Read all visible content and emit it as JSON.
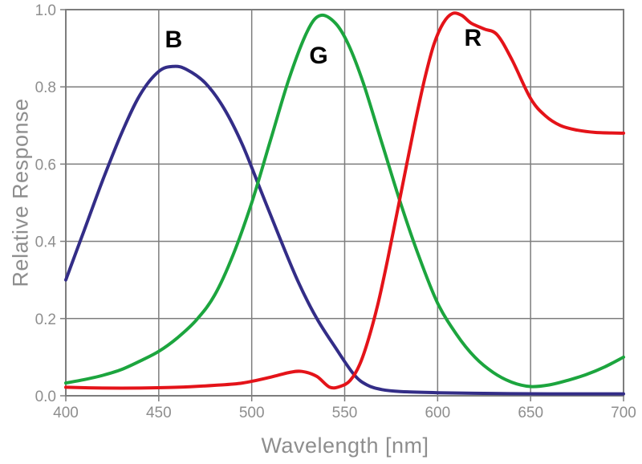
{
  "figure": {
    "background": "#ffffff",
    "kind": "spectral response line chart"
  },
  "style": {
    "grid_color": "#7d7d7d",
    "axis_color": "#7d7d7d",
    "tick_label_color": "#8e8e8e",
    "axis_title_color": "#8e8e8e",
    "series_label_color": "#000000",
    "curve_width": 4
  },
  "chart_data": {
    "type": "line",
    "title": "",
    "xlabel": "Wavelength [nm]",
    "ylabel": "Relative Response",
    "xlim": [
      400,
      700
    ],
    "ylim": [
      0.0,
      1.0
    ],
    "grid": true,
    "legend_position": "inline-labels",
    "x_ticks": [
      400,
      450,
      500,
      550,
      600,
      650,
      700
    ],
    "x_tick_labels": [
      "400",
      "450",
      "500",
      "550",
      "600",
      "650",
      "700"
    ],
    "y_ticks": [
      0.0,
      0.2,
      0.4,
      0.6,
      0.8,
      1.0
    ],
    "y_tick_labels": [
      "0.0",
      "0.2",
      "0.4",
      "0.6",
      "0.8",
      "1.0"
    ],
    "series": [
      {
        "name": "B",
        "color": "#332d87",
        "label_at": [
          458,
          0.92
        ],
        "points": [
          [
            400,
            0.3
          ],
          [
            410,
            0.43
          ],
          [
            420,
            0.56
          ],
          [
            430,
            0.68
          ],
          [
            440,
            0.78
          ],
          [
            450,
            0.84
          ],
          [
            458,
            0.853
          ],
          [
            465,
            0.845
          ],
          [
            475,
            0.81
          ],
          [
            485,
            0.745
          ],
          [
            495,
            0.65
          ],
          [
            505,
            0.53
          ],
          [
            515,
            0.41
          ],
          [
            525,
            0.295
          ],
          [
            535,
            0.2
          ],
          [
            545,
            0.125
          ],
          [
            555,
            0.055
          ],
          [
            562,
            0.028
          ],
          [
            570,
            0.016
          ],
          [
            580,
            0.011
          ],
          [
            600,
            0.008
          ],
          [
            630,
            0.006
          ],
          [
            660,
            0.005
          ],
          [
            700,
            0.005
          ]
        ]
      },
      {
        "name": "G",
        "color": "#1ca53e",
        "label_at": [
          536,
          0.88
        ],
        "points": [
          [
            400,
            0.033
          ],
          [
            410,
            0.042
          ],
          [
            420,
            0.053
          ],
          [
            430,
            0.068
          ],
          [
            440,
            0.09
          ],
          [
            450,
            0.115
          ],
          [
            460,
            0.15
          ],
          [
            470,
            0.195
          ],
          [
            480,
            0.26
          ],
          [
            490,
            0.365
          ],
          [
            500,
            0.5
          ],
          [
            510,
            0.66
          ],
          [
            520,
            0.82
          ],
          [
            530,
            0.945
          ],
          [
            537,
            0.985
          ],
          [
            545,
            0.965
          ],
          [
            552,
            0.91
          ],
          [
            560,
            0.81
          ],
          [
            570,
            0.655
          ],
          [
            580,
            0.5
          ],
          [
            590,
            0.36
          ],
          [
            600,
            0.24
          ],
          [
            610,
            0.16
          ],
          [
            620,
            0.1
          ],
          [
            630,
            0.06
          ],
          [
            640,
            0.035
          ],
          [
            650,
            0.024
          ],
          [
            660,
            0.028
          ],
          [
            670,
            0.04
          ],
          [
            680,
            0.055
          ],
          [
            690,
            0.075
          ],
          [
            700,
            0.1
          ]
        ]
      },
      {
        "name": "R",
        "color": "#e41319",
        "label_at": [
          619,
          0.925
        ],
        "points": [
          [
            400,
            0.022
          ],
          [
            420,
            0.02
          ],
          [
            440,
            0.02
          ],
          [
            460,
            0.022
          ],
          [
            480,
            0.027
          ],
          [
            495,
            0.033
          ],
          [
            510,
            0.048
          ],
          [
            520,
            0.06
          ],
          [
            527,
            0.063
          ],
          [
            535,
            0.05
          ],
          [
            542,
            0.022
          ],
          [
            548,
            0.025
          ],
          [
            553,
            0.04
          ],
          [
            558,
            0.08
          ],
          [
            563,
            0.15
          ],
          [
            568,
            0.24
          ],
          [
            573,
            0.35
          ],
          [
            578,
            0.47
          ],
          [
            583,
            0.59
          ],
          [
            588,
            0.71
          ],
          [
            593,
            0.82
          ],
          [
            598,
            0.91
          ],
          [
            603,
            0.965
          ],
          [
            608,
            0.99
          ],
          [
            613,
            0.985
          ],
          [
            618,
            0.965
          ],
          [
            625,
            0.95
          ],
          [
            632,
            0.935
          ],
          [
            640,
            0.87
          ],
          [
            650,
            0.77
          ],
          [
            658,
            0.725
          ],
          [
            666,
            0.7
          ],
          [
            675,
            0.688
          ],
          [
            685,
            0.682
          ],
          [
            700,
            0.68
          ]
        ]
      }
    ]
  }
}
